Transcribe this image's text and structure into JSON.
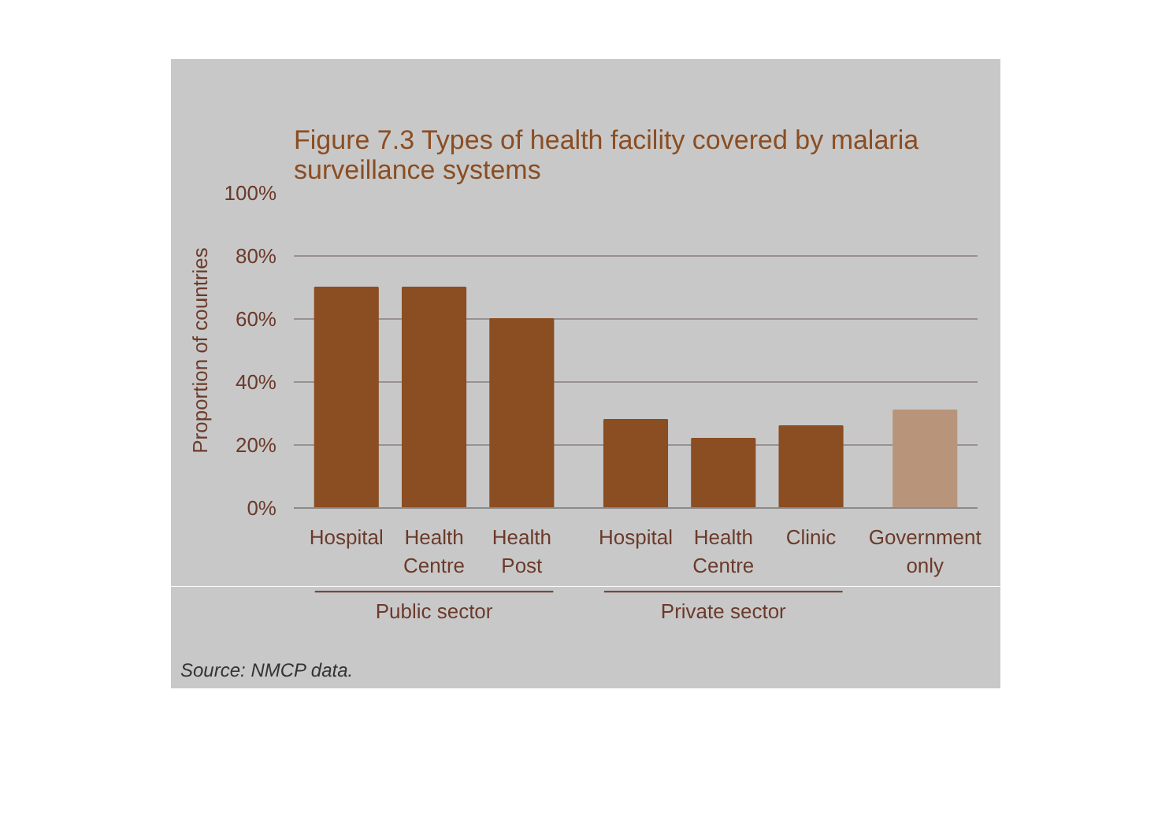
{
  "chart_data": {
    "type": "bar",
    "title": "Figure 7.3 Types of health facility covered by malaria surveillance systems",
    "ylabel": "Proportion of countries",
    "categories": [
      "Hospital",
      "Health Centre",
      "Health Post",
      "Hospital",
      "Health Centre",
      "Clinic",
      "Government only"
    ],
    "values": [
      70,
      70,
      60,
      28,
      22,
      26,
      31
    ],
    "colors": [
      "#8b4d22",
      "#8b4d22",
      "#8b4d22",
      "#8b4d22",
      "#8b4d22",
      "#8b4d22",
      "#b8957a"
    ],
    "ylim": [
      0,
      100
    ],
    "yticks": [
      {
        "value": 0,
        "label": "0%"
      },
      {
        "value": 20,
        "label": "20%"
      },
      {
        "value": 40,
        "label": "40%"
      },
      {
        "value": 60,
        "label": "60%"
      },
      {
        "value": 80,
        "label": "80%"
      },
      {
        "value": 100,
        "label": "100%"
      }
    ],
    "grid": "y",
    "annotations": [
      "Public sector",
      "Private sector",
      "Source: NMCP data."
    ]
  }
}
